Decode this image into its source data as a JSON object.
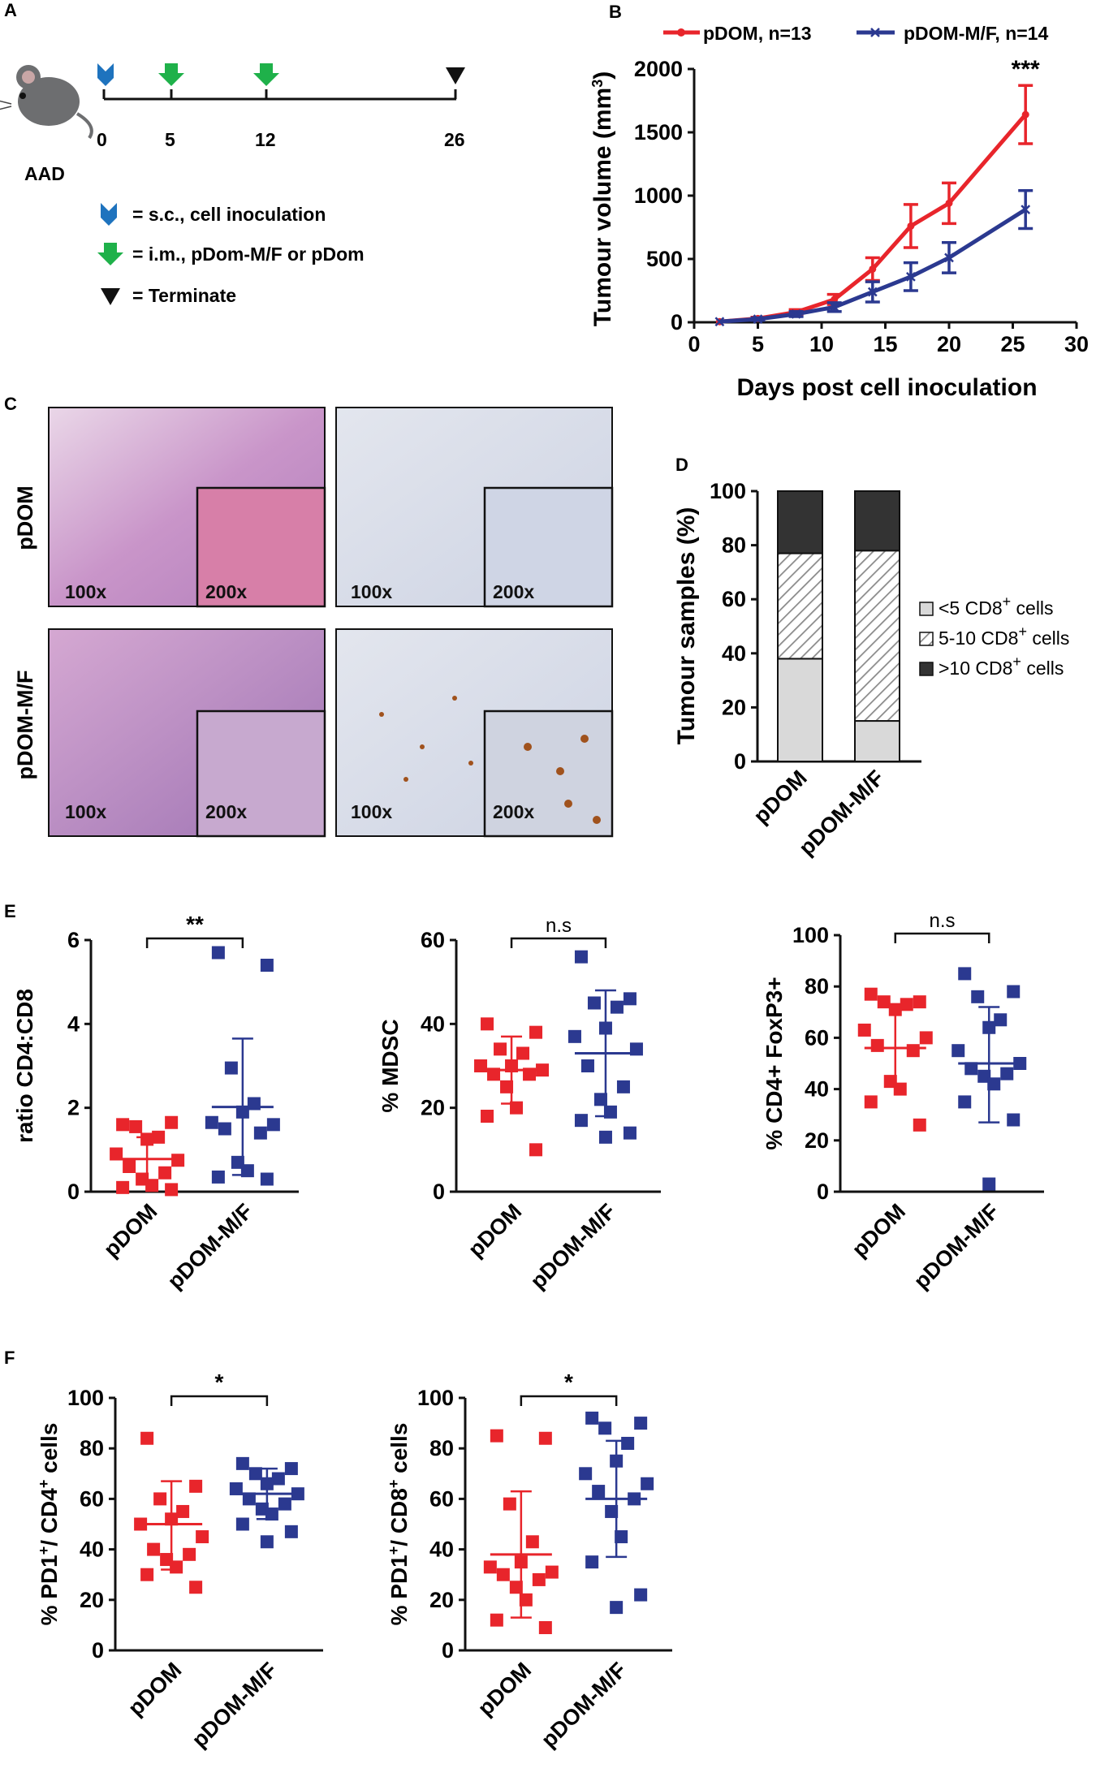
{
  "colors": {
    "red": "#e8252b",
    "blue": "#2b3990",
    "green": "#1fb14a",
    "blue_marker": "#1e73be",
    "black": "#111111"
  },
  "panels": {
    "A": "A",
    "B": "B",
    "C": "C",
    "D": "D",
    "E": "E",
    "F": "F"
  },
  "panel_a": {
    "mouse_label": "AAD",
    "timeline_ticks": [
      "0",
      "5",
      "12",
      "26"
    ],
    "legend": [
      {
        "icon": "blue-chevron",
        "text": "= s.c., cell inoculation"
      },
      {
        "icon": "green-arrow",
        "text": "= i.m., pDom-M/F or pDom"
      },
      {
        "icon": "black-triangle",
        "text": "= Terminate"
      }
    ]
  },
  "panel_c": {
    "row_labels": [
      "pDOM",
      "pDOM-M/F"
    ],
    "magnifications": [
      "100x",
      "200x"
    ]
  },
  "chart_data": [
    {
      "id": "B",
      "type": "line",
      "xlabel": "Days post cell inoculation",
      "ylabel": "Tumour volume (mm",
      "ylabel_sup": "3",
      "ylabel_end": ")",
      "xlim": [
        0,
        30
      ],
      "ylim": [
        0,
        2000
      ],
      "xticks": [
        0,
        5,
        10,
        15,
        20,
        25,
        30
      ],
      "yticks": [
        0,
        500,
        1000,
        1500,
        2000
      ],
      "annotation": "***",
      "series": [
        {
          "name": "pDOM, n=13",
          "color": "#e8252b",
          "marker": "circle",
          "x": [
            2,
            5,
            8,
            11,
            14,
            17,
            20,
            26
          ],
          "y": [
            5,
            30,
            80,
            180,
            420,
            760,
            940,
            1640
          ],
          "err": [
            0,
            10,
            20,
            40,
            90,
            170,
            160,
            230
          ]
        },
        {
          "name": "pDOM-M/F, n=14",
          "color": "#2b3990",
          "marker": "x",
          "x": [
            2,
            5,
            8,
            11,
            14,
            17,
            20,
            26
          ],
          "y": [
            5,
            25,
            65,
            120,
            240,
            360,
            510,
            890
          ],
          "err": [
            0,
            10,
            20,
            35,
            80,
            110,
            120,
            150
          ]
        }
      ]
    },
    {
      "id": "D",
      "type": "bar",
      "ylabel": "Tumour samples (%)",
      "ylim": [
        0,
        100
      ],
      "yticks": [
        0,
        20,
        40,
        60,
        80,
        100
      ],
      "categories": [
        "pDOM",
        "pDOM-M/F"
      ],
      "series": [
        {
          "name": "<5 CD8",
          "suffix": " cells",
          "values": [
            38,
            15
          ]
        },
        {
          "name": "5-10 CD8",
          "suffix": " cells",
          "values": [
            39,
            63
          ]
        },
        {
          "name": ">10 CD8",
          "suffix": " cells",
          "values": [
            23,
            22
          ]
        }
      ],
      "legend_sup": "+"
    },
    {
      "id": "E1",
      "type": "scatter",
      "ylabel": "ratio CD4:CD8",
      "ylim": [
        0,
        6
      ],
      "yticks": [
        0,
        2,
        4,
        6
      ],
      "categories": [
        "pDOM",
        "pDOM-M/F"
      ],
      "significance": "**",
      "groups": [
        {
          "name": "pDOM",
          "color": "#e8252b",
          "mean": 0.78,
          "sd_low": 0.26,
          "sd_high": 1.3,
          "values": [
            1.6,
            1.65,
            1.55,
            1.3,
            1.25,
            0.9,
            0.75,
            0.6,
            0.45,
            0.3,
            0.15,
            0.1,
            0.05
          ]
        },
        {
          "name": "pDOM-M/F",
          "color": "#2b3990",
          "mean": 2.02,
          "sd_low": 0.4,
          "sd_high": 3.65,
          "values": [
            5.7,
            5.4,
            2.95,
            2.1,
            1.9,
            1.65,
            1.6,
            1.5,
            1.4,
            0.7,
            0.5,
            0.35,
            0.3
          ]
        }
      ]
    },
    {
      "id": "E2",
      "type": "scatter",
      "ylabel": "% MDSC",
      "ylim": [
        0,
        60
      ],
      "yticks": [
        0,
        20,
        40,
        60
      ],
      "categories": [
        "pDOM",
        "pDOM-M/F"
      ],
      "significance": "n.s",
      "groups": [
        {
          "name": "pDOM",
          "color": "#e8252b",
          "mean": 29,
          "sd_low": 21,
          "sd_high": 37,
          "values": [
            40,
            38,
            34,
            33,
            30,
            30,
            29,
            28,
            28,
            25,
            20,
            18,
            10
          ]
        },
        {
          "name": "pDOM-M/F",
          "color": "#2b3990",
          "mean": 33,
          "sd_low": 18,
          "sd_high": 48,
          "values": [
            56,
            46,
            45,
            44,
            39,
            37,
            34,
            30,
            25,
            22,
            19,
            17,
            14,
            13
          ]
        }
      ]
    },
    {
      "id": "E3",
      "type": "scatter",
      "ylabel": "% CD4+ FoxP3+",
      "ylim": [
        0,
        100
      ],
      "yticks": [
        0,
        20,
        40,
        60,
        80,
        100
      ],
      "categories": [
        "pDOM",
        "pDOM-M/F"
      ],
      "significance": "n.s",
      "groups": [
        {
          "name": "pDOM",
          "color": "#e8252b",
          "mean": 56,
          "sd_low": 41,
          "sd_high": 72,
          "values": [
            77,
            74,
            74,
            73,
            71,
            63,
            60,
            57,
            55,
            43,
            40,
            35,
            26
          ]
        },
        {
          "name": "pDOM-M/F",
          "color": "#2b3990",
          "mean": 50,
          "sd_low": 27,
          "sd_high": 72,
          "values": [
            85,
            78,
            76,
            67,
            64,
            55,
            50,
            48,
            46,
            45,
            42,
            35,
            28,
            3
          ]
        }
      ]
    },
    {
      "id": "F1",
      "type": "scatter",
      "ylabel": "% PD1",
      "ylabel_parts": [
        "% PD1",
        "+",
        "/ CD4",
        "+",
        " cells"
      ],
      "ylim": [
        0,
        100
      ],
      "yticks": [
        0,
        20,
        40,
        60,
        80,
        100
      ],
      "categories": [
        "pDOM",
        "pDOM-M/F"
      ],
      "significance": "*",
      "groups": [
        {
          "name": "pDOM",
          "color": "#e8252b",
          "mean": 50,
          "sd_low": 32,
          "sd_high": 67,
          "values": [
            84,
            65,
            60,
            55,
            52,
            50,
            45,
            40,
            38,
            36,
            33,
            30,
            25
          ]
        },
        {
          "name": "pDOM-M/F",
          "color": "#2b3990",
          "mean": 62,
          "sd_low": 52,
          "sd_high": 72,
          "values": [
            74,
            72,
            70,
            68,
            66,
            64,
            62,
            60,
            58,
            56,
            54,
            50,
            47,
            43
          ]
        }
      ]
    },
    {
      "id": "F2",
      "type": "scatter",
      "ylabel": "% PD1",
      "ylabel_parts": [
        "% PD1",
        "+",
        "/ CD8",
        "+",
        " cells"
      ],
      "ylim": [
        0,
        100
      ],
      "yticks": [
        0,
        20,
        40,
        60,
        80,
        100
      ],
      "categories": [
        "pDOM",
        "pDOM-M/F"
      ],
      "significance": "*",
      "groups": [
        {
          "name": "pDOM",
          "color": "#e8252b",
          "mean": 38,
          "sd_low": 13,
          "sd_high": 63,
          "values": [
            85,
            84,
            58,
            43,
            35,
            33,
            31,
            30,
            28,
            25,
            20,
            12,
            9
          ]
        },
        {
          "name": "pDOM-M/F",
          "color": "#2b3990",
          "mean": 60,
          "sd_low": 37,
          "sd_high": 83,
          "values": [
            92,
            90,
            88,
            82,
            75,
            70,
            66,
            63,
            60,
            55,
            45,
            35,
            22,
            17
          ]
        }
      ]
    }
  ]
}
